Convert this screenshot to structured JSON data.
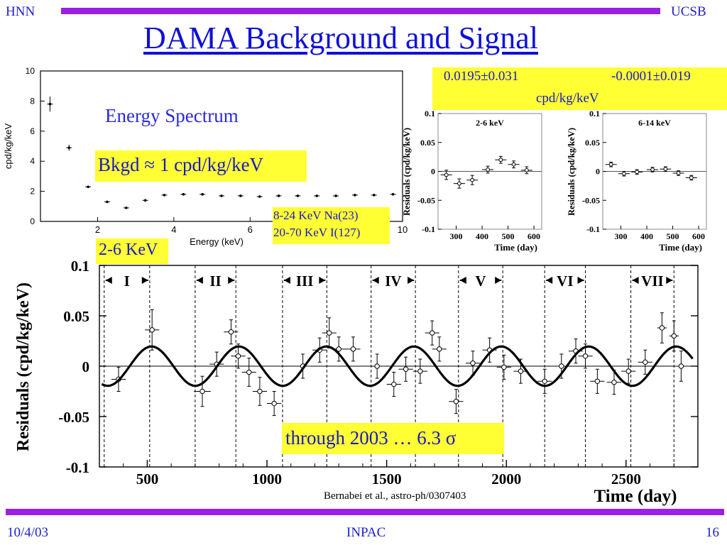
{
  "header": {
    "left": "HNN",
    "right": "UCSB"
  },
  "title": "DAMA Background and Signal",
  "footer": {
    "date": "10/4/03",
    "center": "INPAC",
    "page": "16"
  },
  "colors": {
    "bar": "#9b1fe8",
    "title": "#1010d8",
    "highlight": "#ffff33",
    "text_blue": "#1818c8"
  },
  "boxes": {
    "modulation_values_left": "0.0195±0.031",
    "modulation_values_right": "-0.0001±0.019",
    "modulation_unit": "cpd/kg/keV",
    "energy_spectrum": "Energy Spectrum",
    "bkgd": "Bkgd ≈ 1 cpd/kg/keV",
    "nuclei_line1": "8-24 KeV Na(23)",
    "nuclei_line2": "20-70 KeV I(127)",
    "band_2_6": "2-6 KeV",
    "through_2003": "through 2003 … 6.3 σ",
    "citation": "Bernabei et al., astro-ph/0307403"
  },
  "chart_data": [
    {
      "type": "scatter",
      "name_key": "energy-spectrum",
      "xlabel": "Energy (keV)",
      "ylabel": "cpd/kg/keV",
      "xlim": [
        0.5,
        10
      ],
      "ylim": [
        0,
        10
      ],
      "xticks": [
        2,
        4,
        6,
        8,
        10
      ],
      "xtick_labels": [
        "2",
        "4",
        "6",
        "8",
        "10"
      ],
      "yticks": [
        0,
        2,
        4,
        6,
        8,
        10
      ],
      "ytick_labels": [
        "0",
        "2",
        "4",
        "6",
        "8",
        "10"
      ],
      "x": [
        0.75,
        1.25,
        1.75,
        2.25,
        2.75,
        3.25,
        3.75,
        4.25,
        4.75,
        5.25,
        5.75,
        6.25,
        6.75,
        7.25,
        7.75,
        8.25,
        8.75,
        9.25,
        9.75
      ],
      "y": [
        7.8,
        4.9,
        2.3,
        1.3,
        0.9,
        1.4,
        1.75,
        1.8,
        1.8,
        1.7,
        1.7,
        1.65,
        1.7,
        1.7,
        1.7,
        1.7,
        1.75,
        1.75,
        1.8
      ],
      "yerr": [
        0.5,
        0.2,
        0.08,
        0.05,
        0.04,
        0.04,
        0.04,
        0.04,
        0.04,
        0.04,
        0.04,
        0.04,
        0.04,
        0.04,
        0.04,
        0.04,
        0.04,
        0.04,
        0.04
      ]
    },
    {
      "type": "scatter",
      "name_key": "residuals-2-6",
      "title": "2-6 keV",
      "xlabel": "Time (day)",
      "ylabel": "Residuals (cpd/kg/keV)",
      "xlim": [
        230,
        630
      ],
      "ylim": [
        -0.1,
        0.1
      ],
      "xticks": [
        300,
        400,
        500,
        600
      ],
      "xtick_labels": [
        "300",
        "400",
        "500",
        "600"
      ],
      "yticks": [
        0.1,
        0.05,
        0,
        -0.05,
        -0.1
      ],
      "ytick_labels": [
        "0.1",
        "0.05",
        "0",
        "-0.05",
        "-0.1"
      ],
      "x": [
        262,
        312,
        362,
        422,
        472,
        522,
        572
      ],
      "y": [
        -0.006,
        -0.021,
        -0.015,
        0.003,
        0.02,
        0.012,
        0.002
      ],
      "xerr": [
        22,
        22,
        22,
        22,
        22,
        22,
        22
      ],
      "yerr": [
        0.008,
        0.008,
        0.008,
        0.006,
        0.006,
        0.006,
        0.006
      ]
    },
    {
      "type": "scatter",
      "name_key": "residuals-6-14",
      "title": "6-14 keV",
      "xlabel": "Time (day)",
      "ylabel": "Residuals (cpd/kg/keV)",
      "xlim": [
        230,
        630
      ],
      "ylim": [
        -0.1,
        0.1
      ],
      "xticks": [
        300,
        400,
        500,
        600
      ],
      "xtick_labels": [
        "300",
        "400",
        "500",
        "600"
      ],
      "yticks": [
        0.1,
        0.05,
        0,
        -0.05,
        -0.1
      ],
      "ytick_labels": [
        "0.1",
        "0.05",
        "0",
        "-0.05",
        "-0.1"
      ],
      "x": [
        262,
        312,
        362,
        422,
        472,
        522,
        572
      ],
      "y": [
        0.012,
        -0.004,
        -0.001,
        0.003,
        0.004,
        -0.003,
        -0.011
      ],
      "xerr": [
        22,
        22,
        22,
        22,
        22,
        22,
        22
      ],
      "yerr": [
        0.004,
        0.004,
        0.004,
        0.004,
        0.004,
        0.004,
        0.004
      ]
    },
    {
      "type": "scatter",
      "name_key": "residuals-main",
      "xlabel": "Time (day)",
      "ylabel": "Residuals (cpd/kg/keV)",
      "xlim": [
        300,
        2800
      ],
      "ylim": [
        -0.1,
        0.1
      ],
      "xticks": [
        500,
        1000,
        1500,
        2000,
        2500
      ],
      "xtick_labels": [
        "500",
        "1000",
        "1500",
        "2000",
        "2500"
      ],
      "yticks": [
        0.1,
        0.05,
        0,
        -0.05,
        -0.1
      ],
      "ytick_labels": [
        "0.1",
        "0.05",
        "0",
        "-0.05",
        "-0.1"
      ],
      "cosine": {
        "amplitude": 0.0195,
        "period": 365.25,
        "phase_day": 152.5
      },
      "years": [
        {
          "label": "I",
          "from": 320,
          "to": 510
        },
        {
          "label": "II",
          "from": 700,
          "to": 870
        },
        {
          "label": "III",
          "from": 1065,
          "to": 1250
        },
        {
          "label": "IV",
          "from": 1435,
          "to": 1620
        },
        {
          "label": "V",
          "from": 1800,
          "to": 1985
        },
        {
          "label": "VI",
          "from": 2160,
          "to": 2330
        },
        {
          "label": "VII",
          "from": 2520,
          "to": 2700
        }
      ],
      "x": [
        380,
        520,
        730,
        790,
        850,
        880,
        925,
        970,
        1030,
        1150,
        1220,
        1260,
        1300,
        1360,
        1460,
        1530,
        1580,
        1640,
        1690,
        1720,
        1790,
        1860,
        1930,
        1990,
        2060,
        2160,
        2230,
        2290,
        2330,
        2380,
        2450,
        2510,
        2580,
        2650,
        2700,
        2730
      ],
      "y": [
        -0.013,
        0.036,
        -0.025,
        0.002,
        0.034,
        0.01,
        -0.006,
        -0.025,
        -0.037,
        0.0,
        0.016,
        0.033,
        0.017,
        0.017,
        0.0,
        -0.018,
        -0.003,
        -0.005,
        0.033,
        0.017,
        -0.035,
        0.003,
        0.016,
        -0.001,
        -0.005,
        -0.015,
        0.0,
        0.015,
        0.01,
        -0.015,
        -0.016,
        -0.005,
        0.004,
        0.038,
        0.03,
        0.0
      ],
      "xerr": [
        30,
        30,
        35,
        30,
        30,
        30,
        30,
        30,
        30,
        30,
        30,
        30,
        30,
        30,
        30,
        30,
        30,
        30,
        30,
        30,
        30,
        30,
        30,
        30,
        30,
        30,
        30,
        30,
        30,
        30,
        30,
        30,
        30,
        20,
        20,
        20
      ],
      "yerr": [
        0.012,
        0.02,
        0.015,
        0.012,
        0.012,
        0.012,
        0.014,
        0.014,
        0.012,
        0.012,
        0.012,
        0.015,
        0.012,
        0.012,
        0.012,
        0.012,
        0.012,
        0.012,
        0.012,
        0.012,
        0.012,
        0.012,
        0.012,
        0.012,
        0.012,
        0.012,
        0.012,
        0.012,
        0.012,
        0.012,
        0.012,
        0.012,
        0.012,
        0.015,
        0.015,
        0.015
      ]
    }
  ]
}
